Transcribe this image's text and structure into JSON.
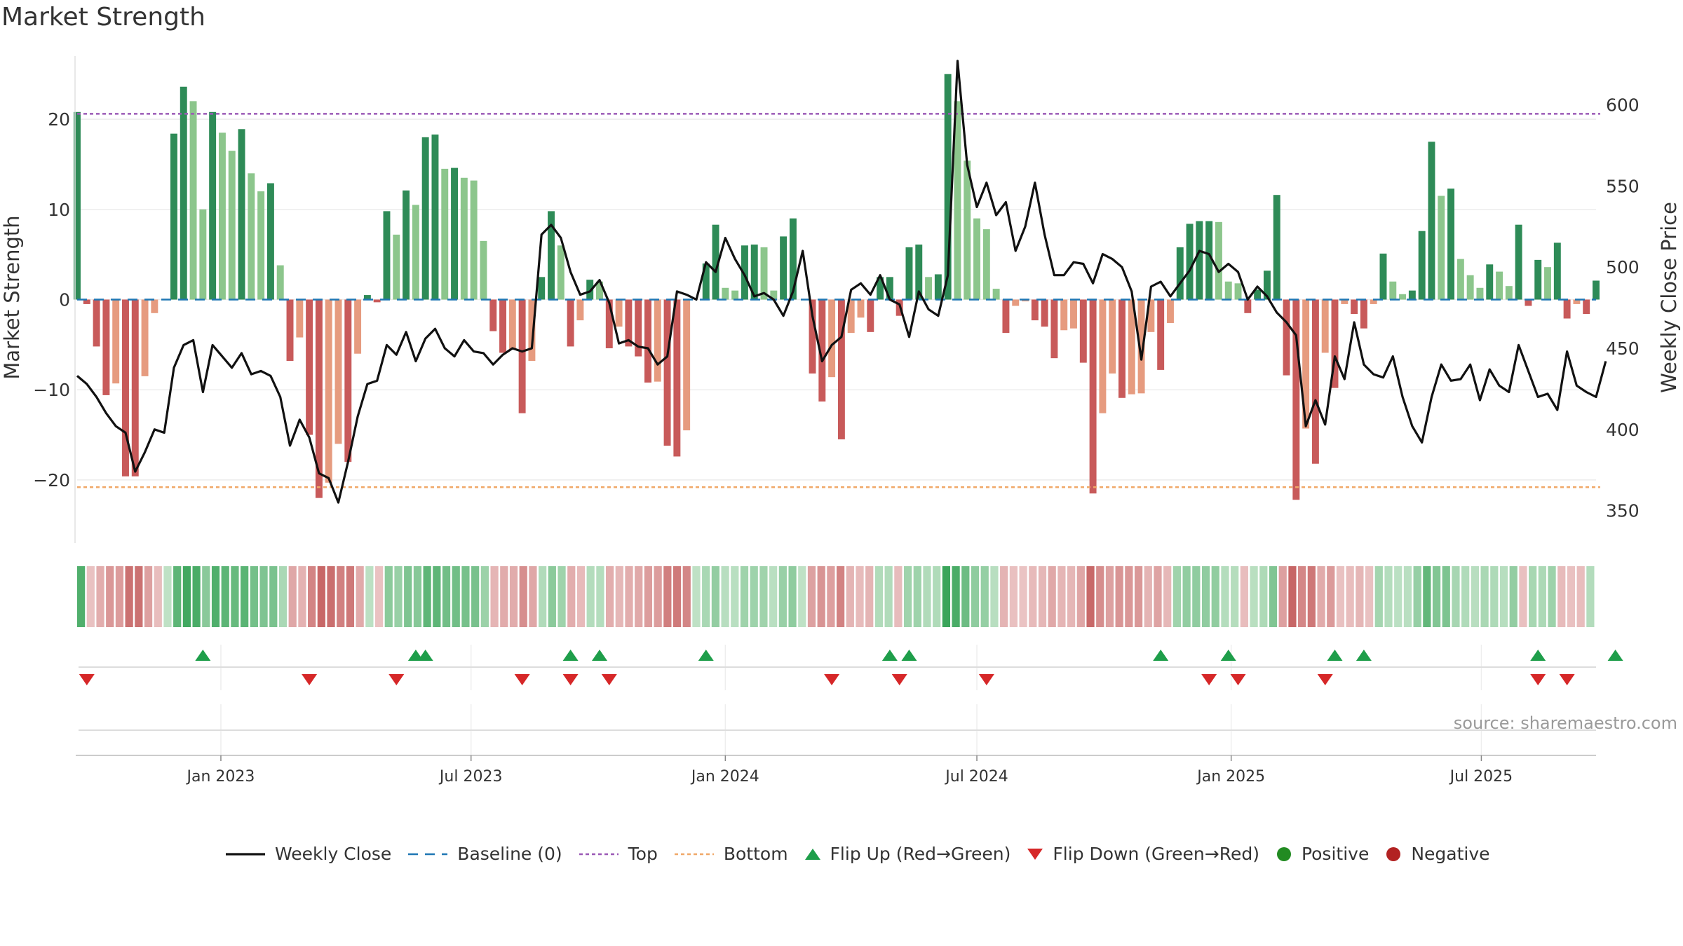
{
  "title": "Market Strength",
  "source_text": "source: sharemaestro.com",
  "colors": {
    "strong_pos": "#2e8b57",
    "weak_pos": "#8cc68c",
    "strong_neg": "#c85a5a",
    "weak_neg": "#e69b7f",
    "close_line": "#111111",
    "baseline": "#1f77b4",
    "top": "#9b59b6",
    "bottom": "#f0a868",
    "flip_up": "#1e9e4a",
    "flip_down": "#d62728",
    "positive": "#228b22",
    "negative": "#b22222"
  },
  "legend": [
    {
      "label": "Weekly Close",
      "kind": "line"
    },
    {
      "label": "Baseline (0)",
      "kind": "baseline"
    },
    {
      "label": "Top",
      "kind": "top"
    },
    {
      "label": "Bottom",
      "kind": "bottom"
    },
    {
      "label": "Flip Up (Red→Green)",
      "kind": "flip_up"
    },
    {
      "label": "Flip Down (Green→Red)",
      "kind": "flip_down"
    },
    {
      "label": "Positive",
      "kind": "positive"
    },
    {
      "label": "Negative",
      "kind": "negative"
    }
  ],
  "chart_data": {
    "type": "bar",
    "title": "Market Strength",
    "ylabel": "Market Strength",
    "y2label": "Weekly Close Price",
    "ylim": [
      -27,
      27
    ],
    "y2lim": [
      330,
      630
    ],
    "yticks": [
      -20,
      -10,
      0,
      10,
      20
    ],
    "y2ticks": [
      350,
      400,
      450,
      500,
      550,
      600
    ],
    "top_level": 20.6,
    "bottom_level": -20.8,
    "baseline": 0,
    "x_start": "2022-09-19",
    "x_step_days": 7,
    "x_end": "2025-10-06",
    "xticks": [
      {
        "label": "Jan 2023",
        "date": "2023-01-01"
      },
      {
        "label": "Jul 2023",
        "date": "2023-07-01"
      },
      {
        "label": "Jan 2024",
        "date": "2024-01-01"
      },
      {
        "label": "Jul 2024",
        "date": "2024-07-01"
      },
      {
        "label": "Jan 2025",
        "date": "2025-01-01"
      },
      {
        "label": "Jul 2025",
        "date": "2025-07-01"
      }
    ],
    "strength": [
      20.8,
      -0.5,
      -5.2,
      -10.6,
      -9.3,
      -19.6,
      -19.6,
      -8.5,
      -1.5,
      0,
      18.4,
      23.6,
      22.0,
      10.0,
      20.8,
      18.5,
      16.5,
      18.9,
      14.0,
      12.0,
      12.9,
      3.8,
      -6.8,
      -4.2,
      -15.0,
      -22.0,
      -20.3,
      -16.0,
      -18.0,
      -6.0,
      0.5,
      -0.3,
      9.8,
      7.2,
      12.1,
      10.5,
      18.0,
      18.3,
      14.5,
      14.6,
      13.5,
      13.2,
      6.5,
      -3.5,
      -5.9,
      -5.5,
      -12.6,
      -6.8,
      2.5,
      9.8,
      6.0,
      -5.2,
      -2.3,
      2.2,
      2.0,
      -5.4,
      -3.0,
      -5.2,
      -6.3,
      -9.2,
      -9.1,
      -16.2,
      -17.4,
      -14.5,
      0,
      4.0,
      8.3,
      1.3,
      1.0,
      6.0,
      6.1,
      5.8,
      1.0,
      7.0,
      9.0,
      0,
      -8.2,
      -11.3,
      -8.6,
      -15.5,
      -3.7,
      -2.0,
      -3.6,
      2.5,
      2.5,
      -1.8,
      5.8,
      6.1,
      2.5,
      2.8,
      25.0,
      22.0,
      15.4,
      9.0,
      7.8,
      1.2,
      -3.7,
      -0.7,
      -0.2,
      -2.3,
      -3.0,
      -6.5,
      -3.4,
      -3.2,
      -7.0,
      -21.5,
      -12.6,
      -8.2,
      -10.9,
      -10.5,
      -10.4,
      -3.6,
      -7.8,
      -2.6,
      5.8,
      8.4,
      8.7,
      8.7,
      8.6,
      2.0,
      1.8,
      -1.5,
      1.1,
      3.2,
      11.6,
      -8.4,
      -22.2,
      -14.3,
      -18.2,
      -5.9,
      -9.8,
      -0.5,
      -1.6,
      -3.2,
      -0.5,
      5.1,
      2.0,
      0.6,
      1.0,
      7.6,
      17.5,
      11.5,
      12.3,
      4.5,
      2.7,
      1.3,
      3.9,
      3.1,
      1.5,
      8.3,
      -0.7,
      4.4,
      3.6,
      6.3,
      -2.1,
      -0.5,
      -1.6,
      2.1
    ],
    "close": [
      433,
      428,
      420,
      410,
      402,
      398,
      374,
      386,
      400,
      398,
      438,
      452,
      455,
      423,
      452,
      445,
      438,
      447,
      434,
      436,
      433,
      420,
      390,
      406,
      395,
      373,
      370,
      355,
      380,
      408,
      428,
      430,
      452,
      446,
      460,
      442,
      456,
      462,
      450,
      445,
      455,
      448,
      447,
      440,
      446,
      450,
      448,
      450,
      520,
      526,
      518,
      497,
      483,
      485,
      492,
      478,
      453,
      455,
      451,
      450,
      440,
      445,
      485,
      483,
      480,
      503,
      497,
      518,
      505,
      495,
      482,
      484,
      480,
      470,
      485,
      510,
      470,
      442,
      452,
      457,
      486,
      490,
      483,
      495,
      480,
      477,
      457,
      485,
      474,
      470,
      495,
      627,
      563,
      537,
      552,
      532,
      540,
      510,
      525,
      552,
      520,
      495,
      495,
      503,
      502,
      490,
      508,
      505,
      500,
      485,
      443,
      488,
      491,
      482,
      490,
      498,
      510,
      508,
      497,
      502,
      497,
      480,
      488,
      482,
      472,
      466,
      458,
      402,
      418,
      403,
      445,
      431,
      466,
      440,
      434,
      432,
      445,
      420,
      402,
      392,
      420,
      440,
      430,
      431,
      440,
      418,
      437,
      427,
      423,
      452,
      436,
      420,
      422,
      412,
      448,
      427,
      423,
      420,
      442
    ],
    "flip_up_dates": [
      "2022-12-19",
      "2023-05-22",
      "2023-05-29",
      "2023-09-11",
      "2023-10-02",
      "2023-12-18",
      "2024-04-29",
      "2024-05-13",
      "2024-11-11",
      "2024-12-30",
      "2025-03-17",
      "2025-04-07",
      "2025-08-11",
      "2025-10-06"
    ],
    "flip_down_dates": [
      "2022-09-26",
      "2023-03-06",
      "2023-05-08",
      "2023-08-07",
      "2023-09-11",
      "2023-10-09",
      "2024-03-18",
      "2024-05-06",
      "2024-07-08",
      "2024-12-16",
      "2025-01-06",
      "2025-03-10",
      "2025-08-11",
      "2025-09-01"
    ]
  }
}
